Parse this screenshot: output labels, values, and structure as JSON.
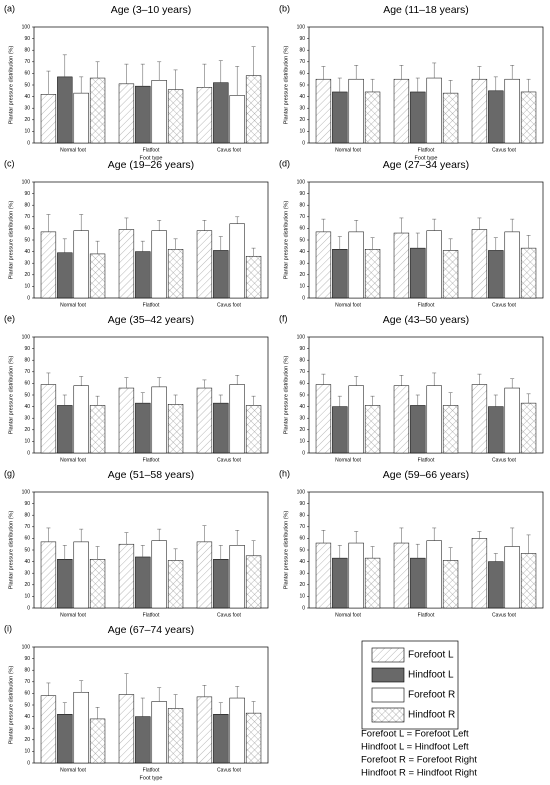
{
  "chart_data": [
    {
      "type": "bar",
      "panel": "(a)",
      "title": "Age (3–10 years)",
      "ylabel": "Plantar pressure distribution (%)",
      "xlabel": "Foot type",
      "categories": [
        "Normal foot",
        "Flatfoot",
        "Cavus foot"
      ],
      "ylim": [
        0,
        100
      ],
      "yticks": [
        0,
        10,
        20,
        30,
        40,
        50,
        60,
        70,
        80,
        90,
        100
      ],
      "series": [
        {
          "values": [
            42,
            51,
            48
          ],
          "errors": [
            20,
            17,
            20
          ]
        },
        {
          "values": [
            57,
            49,
            52
          ],
          "errors": [
            19,
            19,
            19
          ]
        },
        {
          "values": [
            43,
            54,
            41
          ],
          "errors": [
            14,
            16,
            25
          ]
        },
        {
          "values": [
            56,
            46,
            58
          ],
          "errors": [
            14,
            17,
            25
          ]
        }
      ]
    },
    {
      "type": "bar",
      "panel": "(b)",
      "title": "Age (11–18 years)",
      "ylabel": "Plantar pressure distribution (%)",
      "xlabel": "Foot type",
      "categories": [
        "Normal foot",
        "Flatfoot",
        "Cavus foot"
      ],
      "ylim": [
        0,
        100
      ],
      "yticks": [
        0,
        10,
        20,
        30,
        40,
        50,
        60,
        70,
        80,
        90,
        100
      ],
      "series": [
        {
          "values": [
            55,
            55,
            55
          ],
          "errors": [
            11,
            12,
            11
          ]
        },
        {
          "values": [
            44,
            44,
            45
          ],
          "errors": [
            12,
            12,
            12
          ]
        },
        {
          "values": [
            55,
            56,
            55
          ],
          "errors": [
            12,
            13,
            12
          ]
        },
        {
          "values": [
            44,
            43,
            44
          ],
          "errors": [
            11,
            11,
            11
          ]
        }
      ]
    },
    {
      "type": "bar",
      "panel": "(c)",
      "title": "Age (19–26 years)",
      "ylabel": "Plantar pressure distribution (%)",
      "categories": [
        "Normal foot",
        "Flatfoot",
        "Cavus foot"
      ],
      "ylim": [
        0,
        100
      ],
      "yticks": [
        0,
        10,
        20,
        30,
        40,
        50,
        60,
        70,
        80,
        90,
        100
      ],
      "series": [
        {
          "values": [
            57,
            59,
            58
          ],
          "errors": [
            15,
            10,
            9
          ]
        },
        {
          "values": [
            39,
            40,
            41
          ],
          "errors": [
            12,
            9,
            12
          ]
        },
        {
          "values": [
            58,
            58,
            64
          ],
          "errors": [
            14,
            9,
            6
          ]
        },
        {
          "values": [
            38,
            42,
            36
          ],
          "errors": [
            11,
            9,
            7
          ]
        }
      ]
    },
    {
      "type": "bar",
      "panel": "(d)",
      "title": "Age (27–34 years)",
      "ylabel": "Plantar pressure distribution (%)",
      "categories": [
        "Normal foot",
        "Flatfoot",
        "Cavus foot"
      ],
      "ylim": [
        0,
        100
      ],
      "yticks": [
        0,
        10,
        20,
        30,
        40,
        50,
        60,
        70,
        80,
        90,
        100
      ],
      "series": [
        {
          "values": [
            57,
            56,
            59
          ],
          "errors": [
            11,
            13,
            10
          ]
        },
        {
          "values": [
            42,
            43,
            41
          ],
          "errors": [
            11,
            13,
            11
          ]
        },
        {
          "values": [
            57,
            58,
            57
          ],
          "errors": [
            10,
            10,
            11
          ]
        },
        {
          "values": [
            42,
            41,
            43
          ],
          "errors": [
            10,
            10,
            11
          ]
        }
      ]
    },
    {
      "type": "bar",
      "panel": "(e)",
      "title": "Age (35–42 years)",
      "ylabel": "Plantar pressure distribution (%)",
      "categories": [
        "Normal foot",
        "Flatfoot",
        "Cavus foot"
      ],
      "ylim": [
        0,
        100
      ],
      "yticks": [
        0,
        10,
        20,
        30,
        40,
        50,
        60,
        70,
        80,
        90,
        100
      ],
      "series": [
        {
          "values": [
            59,
            56,
            56
          ],
          "errors": [
            10,
            9,
            7
          ]
        },
        {
          "values": [
            41,
            43,
            43
          ],
          "errors": [
            9,
            9,
            7
          ]
        },
        {
          "values": [
            58,
            57,
            59
          ],
          "errors": [
            8,
            8,
            8
          ]
        },
        {
          "values": [
            41,
            42,
            41
          ],
          "errors": [
            8,
            8,
            8
          ]
        }
      ]
    },
    {
      "type": "bar",
      "panel": "(f)",
      "title": "Age (43–50 years)",
      "ylabel": "Plantar pressure distribution (%)",
      "categories": [
        "Normal foot",
        "Flatfoot",
        "Cavus foot"
      ],
      "ylim": [
        0,
        100
      ],
      "yticks": [
        0,
        10,
        20,
        30,
        40,
        50,
        60,
        70,
        80,
        90,
        100
      ],
      "series": [
        {
          "values": [
            59,
            58,
            59
          ],
          "errors": [
            9,
            9,
            9
          ]
        },
        {
          "values": [
            40,
            41,
            40
          ],
          "errors": [
            9,
            9,
            10
          ]
        },
        {
          "values": [
            58,
            58,
            56
          ],
          "errors": [
            8,
            11,
            8
          ]
        },
        {
          "values": [
            41,
            41,
            43
          ],
          "errors": [
            8,
            11,
            8
          ]
        }
      ]
    },
    {
      "type": "bar",
      "panel": "(g)",
      "title": "Age (51–58 years)",
      "ylabel": "Plantar pressure distribution (%)",
      "categories": [
        "Normal foot",
        "Flatfoot",
        "Cavus foot"
      ],
      "ylim": [
        0,
        100
      ],
      "yticks": [
        0,
        10,
        20,
        30,
        40,
        50,
        60,
        70,
        80,
        90,
        100
      ],
      "series": [
        {
          "values": [
            57,
            55,
            57
          ],
          "errors": [
            12,
            10,
            14
          ]
        },
        {
          "values": [
            42,
            44,
            42
          ],
          "errors": [
            12,
            10,
            12
          ]
        },
        {
          "values": [
            57,
            58,
            54
          ],
          "errors": [
            11,
            10,
            13
          ]
        },
        {
          "values": [
            42,
            41,
            45
          ],
          "errors": [
            11,
            10,
            13
          ]
        }
      ]
    },
    {
      "type": "bar",
      "panel": "(h)",
      "title": "Age (59–66 years)",
      "ylabel": "Plantar pressure distribution (%)",
      "categories": [
        "Normal foot",
        "Flatfoot",
        "Cavus foot"
      ],
      "ylim": [
        0,
        100
      ],
      "yticks": [
        0,
        10,
        20,
        30,
        40,
        50,
        60,
        70,
        80,
        90,
        100
      ],
      "series": [
        {
          "values": [
            56,
            56,
            60
          ],
          "errors": [
            11,
            13,
            6
          ]
        },
        {
          "values": [
            43,
            43,
            40
          ],
          "errors": [
            11,
            12,
            7
          ]
        },
        {
          "values": [
            56,
            58,
            53
          ],
          "errors": [
            10,
            11,
            16
          ]
        },
        {
          "values": [
            43,
            41,
            47
          ],
          "errors": [
            10,
            11,
            16
          ]
        }
      ]
    },
    {
      "type": "bar",
      "panel": "(i)",
      "title": "Age (67–74 years)",
      "ylabel": "Plantar pressure distribution (%)",
      "xlabel": "Foot type",
      "categories": [
        "Normal foot",
        "Flatfoot",
        "Cavus foot"
      ],
      "ylim": [
        0,
        100
      ],
      "yticks": [
        0,
        10,
        20,
        30,
        40,
        50,
        60,
        70,
        80,
        90,
        100
      ],
      "series": [
        {
          "values": [
            58,
            59,
            57
          ],
          "errors": [
            11,
            18,
            10
          ]
        },
        {
          "values": [
            42,
            40,
            42
          ],
          "errors": [
            10,
            16,
            10
          ]
        },
        {
          "values": [
            61,
            53,
            56
          ],
          "errors": [
            10,
            12,
            10
          ]
        },
        {
          "values": [
            38,
            47,
            43
          ],
          "errors": [
            10,
            12,
            10
          ]
        }
      ]
    }
  ],
  "legend": {
    "entries": [
      {
        "name": "Forefoot L",
        "color": "#ffffff",
        "pattern": "diagonal"
      },
      {
        "name": "Hindfoot L",
        "color": "#696969",
        "pattern": "solid"
      },
      {
        "name": "Forefoot R",
        "color": "#ffffff",
        "pattern": "solid"
      },
      {
        "name": "Hindfoot R",
        "color": "#ffffff",
        "pattern": "cross"
      }
    ],
    "notes": [
      "Forefoot L = Forefoot Left",
      "Hindfoot L = Hindfoot Left",
      "Forefoot R = Forefoot Right",
      "Hindfoot R = Hindfoot Right"
    ]
  }
}
